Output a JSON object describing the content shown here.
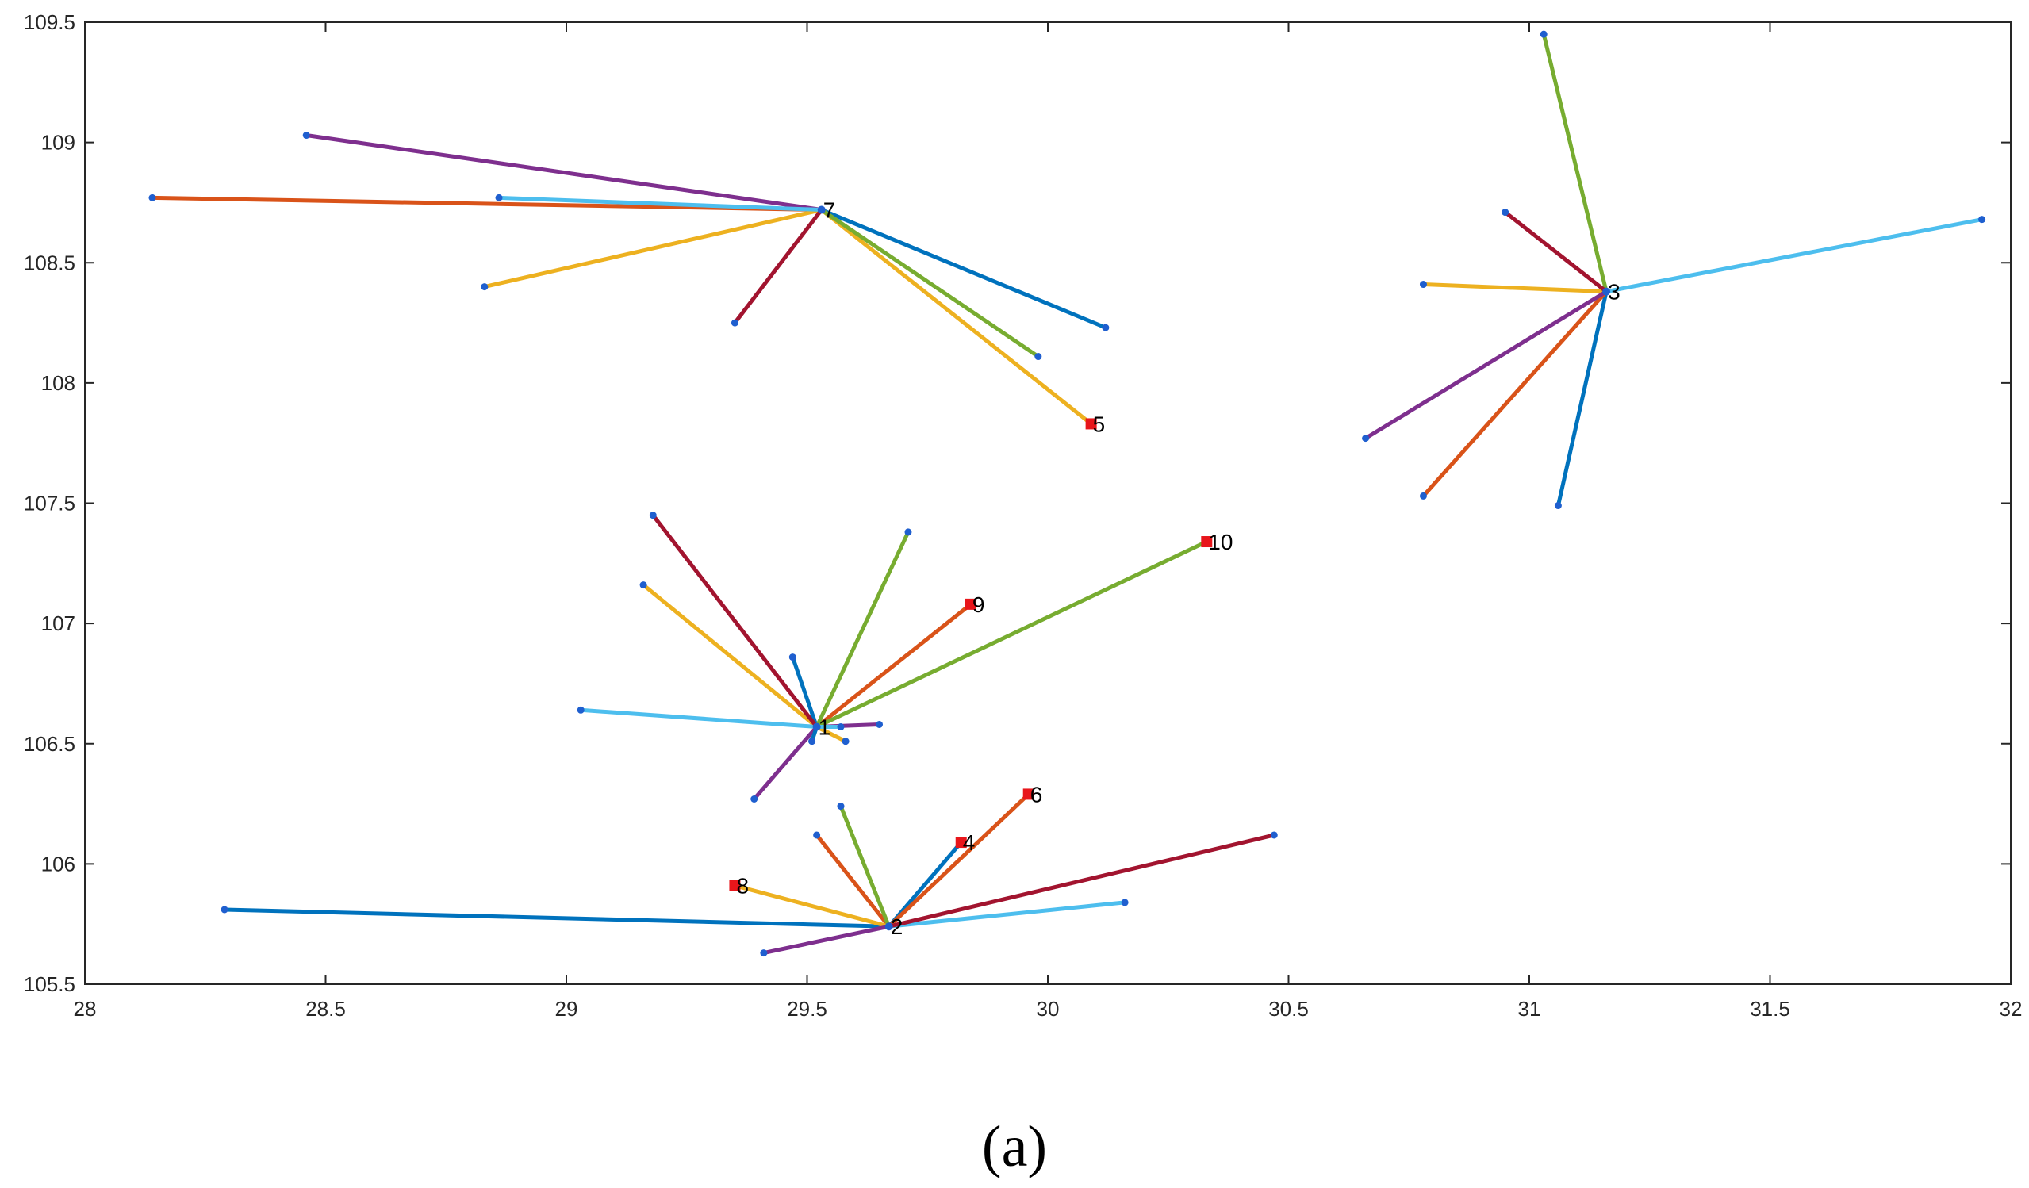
{
  "chart_data": {
    "type": "scatter",
    "title": "",
    "xlabel": "",
    "ylabel": "",
    "xlim": [
      28,
      32
    ],
    "ylim": [
      105.5,
      109.5
    ],
    "xticks": [
      28,
      28.5,
      29,
      29.5,
      30,
      30.5,
      31,
      31.5,
      32
    ],
    "yticks": [
      105.5,
      106,
      106.5,
      107,
      107.5,
      108,
      108.5,
      109,
      109.5
    ],
    "grid": false,
    "caption": "(a)",
    "palette": [
      "#0072BD",
      "#D95319",
      "#EDB120",
      "#7E2F8E",
      "#77AC30",
      "#4DBEEE",
      "#A2142F"
    ],
    "hubs": [
      {
        "id": "1",
        "x": 29.52,
        "y": 106.57,
        "links": [
          {
            "x": 29.47,
            "y": 106.86,
            "color": "#0072BD"
          },
          {
            "x": 29.84,
            "y": 107.08,
            "color": "#D95319",
            "node": "9"
          },
          {
            "x": 29.16,
            "y": 107.16,
            "color": "#EDB120"
          },
          {
            "x": 29.58,
            "y": 106.51,
            "color": "#EDB120"
          },
          {
            "x": 29.39,
            "y": 106.27,
            "color": "#7E2F8E"
          },
          {
            "x": 29.65,
            "y": 106.58,
            "color": "#7E2F8E"
          },
          {
            "x": 29.71,
            "y": 107.38,
            "color": "#77AC30"
          },
          {
            "x": 30.33,
            "y": 107.34,
            "color": "#77AC30",
            "node": "10"
          },
          {
            "x": 29.03,
            "y": 106.64,
            "color": "#4DBEEE"
          },
          {
            "x": 29.57,
            "y": 106.57,
            "color": "#4DBEEE"
          },
          {
            "x": 29.18,
            "y": 107.45,
            "color": "#A2142F"
          },
          {
            "x": 29.51,
            "y": 106.51,
            "color": "#0072BD"
          }
        ]
      },
      {
        "id": "2",
        "x": 29.67,
        "y": 105.74,
        "links": [
          {
            "x": 28.29,
            "y": 105.81,
            "color": "#0072BD"
          },
          {
            "x": 29.82,
            "y": 106.09,
            "color": "#0072BD",
            "node": "4"
          },
          {
            "x": 29.52,
            "y": 106.12,
            "color": "#D95319"
          },
          {
            "x": 29.96,
            "y": 106.29,
            "color": "#D95319",
            "node": "6"
          },
          {
            "x": 29.35,
            "y": 105.91,
            "color": "#EDB120",
            "node": "8"
          },
          {
            "x": 29.41,
            "y": 105.63,
            "color": "#7E2F8E"
          },
          {
            "x": 29.57,
            "y": 106.24,
            "color": "#77AC30"
          },
          {
            "x": 30.16,
            "y": 105.84,
            "color": "#4DBEEE"
          },
          {
            "x": 30.47,
            "y": 106.12,
            "color": "#A2142F"
          }
        ]
      },
      {
        "id": "3",
        "x": 31.16,
        "y": 108.38,
        "links": [
          {
            "x": 31.06,
            "y": 107.49,
            "color": "#0072BD"
          },
          {
            "x": 30.78,
            "y": 107.53,
            "color": "#D95319"
          },
          {
            "x": 30.78,
            "y": 108.41,
            "color": "#EDB120"
          },
          {
            "x": 30.66,
            "y": 107.77,
            "color": "#7E2F8E"
          },
          {
            "x": 31.03,
            "y": 109.45,
            "color": "#77AC30"
          },
          {
            "x": 31.94,
            "y": 108.68,
            "color": "#4DBEEE"
          },
          {
            "x": 30.95,
            "y": 108.71,
            "color": "#A2142F"
          }
        ]
      },
      {
        "id": "7",
        "x": 29.53,
        "y": 108.72,
        "links": [
          {
            "x": 30.12,
            "y": 108.23,
            "color": "#0072BD"
          },
          {
            "x": 28.14,
            "y": 108.77,
            "color": "#D95319"
          },
          {
            "x": 28.83,
            "y": 108.4,
            "color": "#EDB120"
          },
          {
            "x": 30.09,
            "y": 107.83,
            "color": "#EDB120",
            "node": "5"
          },
          {
            "x": 28.46,
            "y": 109.03,
            "color": "#7E2F8E"
          },
          {
            "x": 29.98,
            "y": 108.11,
            "color": "#77AC30"
          },
          {
            "x": 28.86,
            "y": 108.77,
            "color": "#4DBEEE"
          },
          {
            "x": 29.35,
            "y": 108.25,
            "color": "#A2142F"
          }
        ]
      }
    ]
  }
}
